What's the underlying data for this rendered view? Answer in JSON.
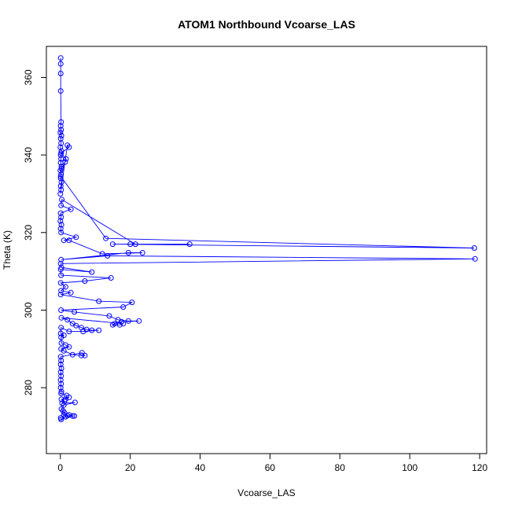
{
  "chart_data": {
    "type": "scatter",
    "title": "ATOM1 Northbound Vcoarse_LAS",
    "xlabel": "Vcoarse_LAS",
    "ylabel": "Theta (K)",
    "xlim": [
      -4,
      122
    ],
    "ylim": [
      263,
      368
    ],
    "xticks": [
      0,
      20,
      40,
      60,
      80,
      100,
      120
    ],
    "yticks": [
      280,
      300,
      320,
      340,
      360
    ],
    "grid": false,
    "legend": "none",
    "series": [
      {
        "color": "#0000ff",
        "marker": "open-circle",
        "connected": true,
        "points": [
          [
            0.1,
            365.0
          ],
          [
            0.1,
            363.5
          ],
          [
            0.1,
            361.0
          ],
          [
            0.1,
            356.5
          ],
          [
            0.2,
            348.5
          ],
          [
            0.1,
            347.5
          ],
          [
            0.2,
            346.5
          ],
          [
            0.0,
            345.8
          ],
          [
            0.3,
            345.0
          ],
          [
            0.1,
            344.2
          ],
          [
            0.2,
            343.0
          ],
          [
            0.0,
            342.0
          ],
          [
            0.3,
            341.0
          ],
          [
            0.1,
            340.0
          ],
          [
            0.2,
            339.0
          ],
          [
            0.1,
            338.0
          ],
          [
            0.3,
            337.0
          ],
          [
            0.0,
            336.0
          ],
          [
            0.2,
            335.0
          ],
          [
            0.1,
            334.0
          ],
          [
            0.3,
            333.0
          ],
          [
            0.1,
            332.0
          ],
          [
            0.2,
            331.0
          ],
          [
            0.0,
            330.0
          ],
          [
            2.0,
            342.5
          ],
          [
            2.5,
            342.0
          ],
          [
            0.2,
            340.5
          ],
          [
            1.6,
            339.0
          ],
          [
            1.4,
            338.2
          ],
          [
            0.3,
            336.5
          ],
          [
            0.1,
            334.5
          ],
          [
            13.0,
            318.5
          ],
          [
            118.5,
            316.0
          ],
          [
            15.0,
            317.0
          ],
          [
            20.0,
            317.0
          ],
          [
            37.0,
            317.0
          ],
          [
            21.5,
            317.0
          ],
          [
            0.4,
            328.5
          ],
          [
            0.2,
            327.0
          ],
          [
            3.0,
            326.0
          ],
          [
            0.1,
            325.0
          ],
          [
            0.2,
            324.0
          ],
          [
            0.0,
            323.0
          ],
          [
            0.3,
            322.0
          ],
          [
            0.1,
            321.0
          ],
          [
            0.2,
            320.0
          ],
          [
            4.5,
            318.8
          ],
          [
            1.0,
            318.0
          ],
          [
            2.5,
            318.0
          ],
          [
            12.0,
            314.5
          ],
          [
            23.5,
            314.8
          ],
          [
            19.5,
            314.8
          ],
          [
            0.2,
            313.0
          ],
          [
            13.5,
            314.0
          ],
          [
            118.7,
            313.2
          ],
          [
            0.1,
            312.0
          ],
          [
            0.3,
            311.0
          ],
          [
            9.0,
            309.8
          ],
          [
            0.1,
            310.5
          ],
          [
            0.2,
            309.0
          ],
          [
            14.5,
            308.3
          ],
          [
            7.0,
            307.5
          ],
          [
            0.1,
            307.0
          ],
          [
            1.5,
            306.0
          ],
          [
            0.2,
            305.0
          ],
          [
            3.0,
            304.5
          ],
          [
            0.1,
            304.0
          ],
          [
            11.0,
            302.3
          ],
          [
            20.5,
            302.0
          ],
          [
            18.0,
            300.8
          ],
          [
            0.2,
            300.0
          ],
          [
            4.0,
            299.5
          ],
          [
            14.0,
            298.5
          ],
          [
            16.5,
            297.5
          ],
          [
            19.5,
            297.2
          ],
          [
            22.5,
            297.2
          ],
          [
            17.5,
            297.0
          ],
          [
            15.5,
            296.5
          ],
          [
            15.0,
            296.2
          ],
          [
            17.0,
            296.2
          ],
          [
            18.0,
            296.5
          ],
          [
            0.3,
            298.0
          ],
          [
            2.0,
            297.5
          ],
          [
            3.5,
            296.5
          ],
          [
            4.5,
            296.0
          ],
          [
            6.0,
            295.5
          ],
          [
            7.5,
            295.0
          ],
          [
            9.0,
            294.8
          ],
          [
            11.0,
            294.8
          ],
          [
            6.5,
            294.5
          ],
          [
            2.5,
            294.5
          ],
          [
            0.2,
            295.5
          ],
          [
            0.1,
            294.0
          ],
          [
            1.0,
            293.5
          ],
          [
            0.2,
            293.0
          ],
          [
            0.3,
            291.5
          ],
          [
            1.5,
            291.0
          ],
          [
            2.5,
            290.5
          ],
          [
            0.2,
            290.0
          ],
          [
            1.0,
            289.5
          ],
          [
            3.5,
            288.5
          ],
          [
            6.0,
            288.3
          ],
          [
            7.0,
            288.3
          ],
          [
            6.2,
            289.0
          ],
          [
            0.1,
            288.0
          ],
          [
            0.2,
            287.0
          ],
          [
            0.1,
            286.0
          ],
          [
            0.3,
            285.0
          ],
          [
            0.1,
            284.0
          ],
          [
            0.2,
            283.0
          ],
          [
            0.1,
            282.0
          ],
          [
            0.2,
            281.0
          ],
          [
            0.1,
            280.0
          ],
          [
            0.3,
            279.0
          ],
          [
            0.2,
            278.5
          ],
          [
            1.8,
            278.0
          ],
          [
            1.5,
            277.0
          ],
          [
            2.5,
            277.5
          ],
          [
            0.3,
            277.0
          ],
          [
            1.2,
            276.5
          ],
          [
            0.5,
            276.0
          ],
          [
            4.2,
            276.2
          ],
          [
            1.0,
            275.5
          ],
          [
            0.3,
            274.5
          ],
          [
            0.8,
            274.0
          ],
          [
            1.2,
            273.5
          ],
          [
            1.0,
            273.0
          ],
          [
            2.0,
            272.8
          ],
          [
            2.5,
            273.0
          ],
          [
            3.5,
            272.7
          ],
          [
            4.0,
            272.7
          ],
          [
            1.5,
            272.5
          ],
          [
            0.2,
            271.8
          ],
          [
            0.1,
            272.2
          ]
        ]
      }
    ]
  }
}
